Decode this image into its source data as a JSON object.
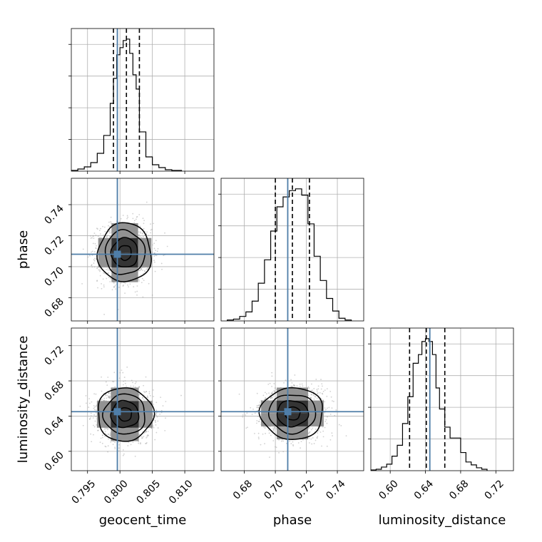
{
  "chart_data": {
    "type": "corner",
    "parameters": [
      "geocent_time",
      "phase",
      "luminosity_distance"
    ],
    "axis_labels": {
      "geocent_time": "geocent_time",
      "phase": "phase",
      "luminosity_distance": "luminosity_distance"
    },
    "ranges": {
      "geocent_time": [
        0.7925,
        0.8145
      ],
      "phase": [
        0.665,
        0.757
      ],
      "luminosity_distance": [
        0.578,
        0.74
      ]
    },
    "ticks": {
      "geocent_time": [
        0.795,
        0.8,
        0.805,
        0.81
      ],
      "phase": [
        0.68,
        0.7,
        0.72,
        0.74
      ],
      "luminosity_distance": [
        0.6,
        0.64,
        0.68,
        0.72
      ]
    },
    "tick_labels": {
      "geocent_time": [
        "0.795",
        "0.800",
        "0.805",
        "0.810"
      ],
      "phase": [
        "0.68",
        "0.70",
        "0.72",
        "0.74"
      ],
      "luminosity_distance": [
        "0.60",
        "0.64",
        "0.68",
        "0.72"
      ]
    },
    "injection": {
      "geocent_time": 0.7996,
      "phase": 0.708,
      "luminosity_distance": 0.645
    },
    "quantiles": {
      "geocent_time": [
        0.799,
        0.801,
        0.803
      ],
      "phase": [
        0.7,
        0.711,
        0.722
      ],
      "luminosity_distance": [
        0.622,
        0.641,
        0.662
      ]
    },
    "marginals": {
      "geocent_time": {
        "edges": [
          0.7925,
          0.7935,
          0.7945,
          0.7955,
          0.7965,
          0.7975,
          0.7985,
          0.799,
          0.7995,
          0.8,
          0.8005,
          0.801,
          0.8015,
          0.802,
          0.8025,
          0.803,
          0.804,
          0.805,
          0.806,
          0.807,
          0.808,
          0.8095
        ],
        "counts": [
          1,
          3,
          6,
          12,
          25,
          50,
          95,
          130,
          163,
          173,
          183,
          185,
          165,
          135,
          115,
          55,
          20,
          9,
          5,
          2,
          1
        ]
      },
      "phase": {
        "edges": [
          0.669,
          0.673,
          0.677,
          0.681,
          0.685,
          0.689,
          0.693,
          0.697,
          0.701,
          0.705,
          0.709,
          0.713,
          0.717,
          0.721,
          0.725,
          0.729,
          0.733,
          0.737,
          0.741,
          0.745,
          0.749
        ],
        "counts": [
          1,
          2,
          5,
          10,
          22,
          42,
          68,
          100,
          127,
          138,
          145,
          147,
          140,
          108,
          72,
          45,
          25,
          11,
          3,
          1
        ]
      },
      "luminosity_distance": {
        "edges": [
          0.578,
          0.584,
          0.59,
          0.596,
          0.602,
          0.608,
          0.614,
          0.62,
          0.626,
          0.632,
          0.636,
          0.64,
          0.644,
          0.648,
          0.652,
          0.656,
          0.662,
          0.668,
          0.674,
          0.68,
          0.686,
          0.692,
          0.698,
          0.704,
          0.71
        ],
        "counts": [
          1,
          2,
          5,
          9,
          20,
          35,
          65,
          102,
          148,
          160,
          178,
          182,
          178,
          160,
          114,
          85,
          60,
          45,
          45,
          25,
          12,
          8,
          4,
          2
        ]
      }
    },
    "pairs": [
      {
        "x": "geocent_time",
        "y": "phase",
        "center": [
          0.80075,
          0.709
        ],
        "sigma": [
          0.00205,
          0.0095
        ],
        "contour_levels_sigma": [
          0.5,
          1.0,
          1.5,
          2.0
        ]
      },
      {
        "x": "geocent_time",
        "y": "luminosity_distance",
        "center": [
          0.80075,
          0.642
        ],
        "sigma": [
          0.00215,
          0.0152
        ],
        "contour_levels_sigma": [
          0.5,
          1.0,
          1.5,
          2.0
        ]
      },
      {
        "x": "phase",
        "y": "luminosity_distance",
        "center": [
          0.711,
          0.643
        ],
        "sigma": [
          0.0101,
          0.0147
        ],
        "contour_levels_sigma": [
          0.5,
          1.0,
          1.5,
          2.0
        ]
      }
    ],
    "colors": {
      "injection": "#4f7ea8",
      "histogram": "#000000",
      "quantile": "#000000",
      "grid": "#b0b0b0",
      "samples": "#9a9a9a"
    },
    "grid": true,
    "legend": "none"
  }
}
